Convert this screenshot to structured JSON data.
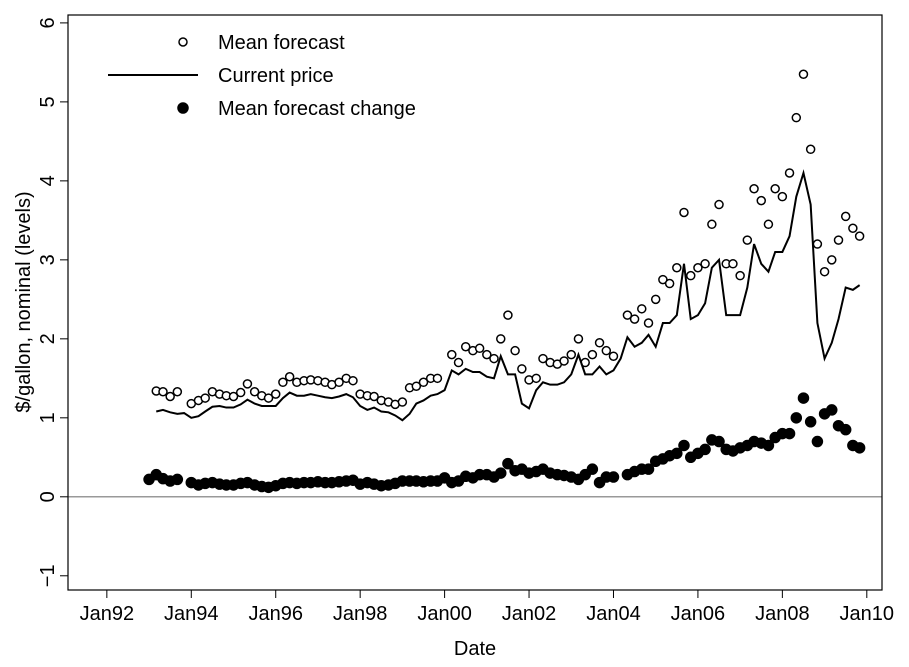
{
  "chart_data": {
    "type": "scatter-line",
    "x_label": "Date",
    "y_label": "$/gallon, nominal (levels)",
    "xlim": [
      1991.08,
      2010.36
    ],
    "ylim": [
      -1.18,
      6.1
    ],
    "xticks": [
      {
        "value": 1992,
        "label": "Jan92"
      },
      {
        "value": 1994,
        "label": "Jan94"
      },
      {
        "value": 1996,
        "label": "Jan96"
      },
      {
        "value": 1998,
        "label": "Jan98"
      },
      {
        "value": 2000,
        "label": "Jan00"
      },
      {
        "value": 2002,
        "label": "Jan02"
      },
      {
        "value": 2004,
        "label": "Jan04"
      },
      {
        "value": 2006,
        "label": "Jan06"
      },
      {
        "value": 2008,
        "label": "Jan08"
      },
      {
        "value": 2010,
        "label": "Jan10"
      }
    ],
    "yticks": [
      {
        "value": -1,
        "label": "−1"
      },
      0,
      1,
      2,
      3,
      4,
      5,
      6
    ],
    "reference_line": {
      "value": 0,
      "color": "#999999"
    },
    "legend": "top-left",
    "x": [
      1993.0,
      1993.17,
      1993.33,
      1993.5,
      1993.67,
      1993.83,
      1994.0,
      1994.17,
      1994.33,
      1994.5,
      1994.67,
      1994.83,
      1995.0,
      1995.17,
      1995.33,
      1995.5,
      1995.67,
      1995.83,
      1996.0,
      1996.17,
      1996.33,
      1996.5,
      1996.67,
      1996.83,
      1997.0,
      1997.17,
      1997.33,
      1997.5,
      1997.67,
      1997.83,
      1998.0,
      1998.17,
      1998.33,
      1998.5,
      1998.67,
      1998.83,
      1999.0,
      1999.17,
      1999.33,
      1999.5,
      1999.67,
      1999.83,
      2000.0,
      2000.17,
      2000.33,
      2000.5,
      2000.67,
      2000.83,
      2001.0,
      2001.17,
      2001.33,
      2001.5,
      2001.67,
      2001.83,
      2002.0,
      2002.17,
      2002.33,
      2002.5,
      2002.67,
      2002.83,
      2003.0,
      2003.17,
      2003.33,
      2003.5,
      2003.67,
      2003.83,
      2004.0,
      2004.17,
      2004.33,
      2004.5,
      2004.67,
      2004.83,
      2005.0,
      2005.17,
      2005.33,
      2005.5,
      2005.67,
      2005.83,
      2006.0,
      2006.17,
      2006.33,
      2006.5,
      2006.67,
      2006.83,
      2007.0,
      2007.17,
      2007.33,
      2007.5,
      2007.67,
      2007.83,
      2008.0,
      2008.17,
      2008.33,
      2008.5,
      2008.67,
      2008.83,
      2009.0,
      2009.17,
      2009.33,
      2009.5,
      2009.67,
      2009.83
    ],
    "series": [
      {
        "name": "Mean forecast",
        "color": "#000000",
        "style": "open-points",
        "values": [
          null,
          1.34,
          1.33,
          1.27,
          1.33,
          null,
          1.18,
          1.22,
          1.25,
          1.33,
          1.3,
          1.28,
          1.27,
          1.32,
          1.43,
          1.33,
          1.28,
          1.25,
          1.3,
          1.45,
          1.52,
          1.45,
          1.47,
          1.48,
          1.47,
          1.45,
          1.42,
          1.45,
          1.5,
          1.47,
          1.3,
          1.28,
          1.27,
          1.22,
          1.2,
          1.17,
          1.2,
          1.38,
          1.4,
          1.45,
          1.5,
          1.5,
          null,
          1.8,
          1.7,
          1.9,
          1.85,
          1.88,
          1.8,
          1.75,
          2.0,
          2.3,
          1.85,
          1.62,
          1.48,
          1.5,
          1.75,
          1.7,
          1.68,
          1.72,
          1.8,
          2.0,
          1.7,
          1.8,
          1.95,
          1.85,
          1.78,
          null,
          2.3,
          2.25,
          2.38,
          2.2,
          2.5,
          2.75,
          2.7,
          2.9,
          3.6,
          2.8,
          2.9,
          2.95,
          3.45,
          3.7,
          2.95,
          2.95,
          2.8,
          3.25,
          3.9,
          3.75,
          3.45,
          3.9,
          3.8,
          4.1,
          4.8,
          5.35,
          4.4,
          3.2,
          2.85,
          3.0,
          3.25,
          3.55,
          3.4,
          3.3
        ]
      },
      {
        "name": "Current price",
        "color": "#000000",
        "style": "line",
        "values": [
          null,
          1.08,
          1.1,
          1.07,
          1.05,
          1.06,
          1.0,
          1.02,
          1.08,
          1.14,
          1.15,
          1.13,
          1.13,
          1.17,
          1.23,
          1.18,
          1.15,
          1.15,
          1.15,
          1.25,
          1.32,
          1.28,
          1.28,
          1.3,
          1.28,
          1.26,
          1.25,
          1.27,
          1.3,
          1.26,
          1.15,
          1.1,
          1.13,
          1.08,
          1.07,
          1.03,
          0.97,
          1.05,
          1.18,
          1.22,
          1.28,
          1.3,
          1.35,
          1.6,
          1.55,
          1.62,
          1.58,
          1.58,
          1.52,
          1.5,
          1.78,
          1.55,
          1.55,
          1.18,
          1.12,
          1.35,
          1.45,
          1.42,
          1.42,
          1.45,
          1.55,
          1.8,
          1.55,
          1.55,
          1.65,
          1.55,
          1.6,
          1.75,
          2.02,
          1.9,
          1.95,
          2.05,
          1.9,
          2.2,
          2.2,
          2.3,
          2.95,
          2.25,
          2.3,
          2.45,
          2.9,
          3.0,
          2.3,
          2.3,
          2.3,
          2.65,
          3.2,
          2.95,
          2.85,
          3.1,
          3.1,
          3.3,
          3.8,
          4.1,
          3.7,
          2.2,
          1.75,
          1.95,
          2.25,
          2.65,
          2.62,
          2.68
        ]
      },
      {
        "name": "Mean forecast change",
        "color": "#000000",
        "style": "filled-points",
        "values": [
          0.22,
          0.28,
          0.23,
          0.2,
          0.22,
          null,
          0.18,
          0.15,
          0.17,
          0.18,
          0.16,
          0.15,
          0.15,
          0.17,
          0.18,
          0.15,
          0.13,
          0.12,
          0.14,
          0.17,
          0.18,
          0.17,
          0.18,
          0.18,
          0.19,
          0.18,
          0.18,
          0.19,
          0.2,
          0.21,
          0.16,
          0.18,
          0.16,
          0.14,
          0.15,
          0.17,
          0.2,
          0.2,
          0.2,
          0.19,
          0.2,
          0.2,
          0.24,
          0.18,
          0.2,
          0.26,
          0.24,
          0.28,
          0.28,
          0.25,
          0.3,
          0.42,
          0.33,
          0.35,
          0.3,
          0.32,
          0.35,
          0.3,
          0.28,
          0.27,
          0.25,
          0.22,
          0.28,
          0.35,
          0.18,
          0.25,
          0.25,
          null,
          0.28,
          0.32,
          0.35,
          0.35,
          0.45,
          0.48,
          0.52,
          0.55,
          0.65,
          0.5,
          0.55,
          0.6,
          0.72,
          0.7,
          0.6,
          0.58,
          0.62,
          0.65,
          0.7,
          0.68,
          0.65,
          0.75,
          0.8,
          0.8,
          1.0,
          1.25,
          0.95,
          0.7,
          1.05,
          1.1,
          0.9,
          0.85,
          0.65,
          0.62
        ]
      }
    ]
  }
}
